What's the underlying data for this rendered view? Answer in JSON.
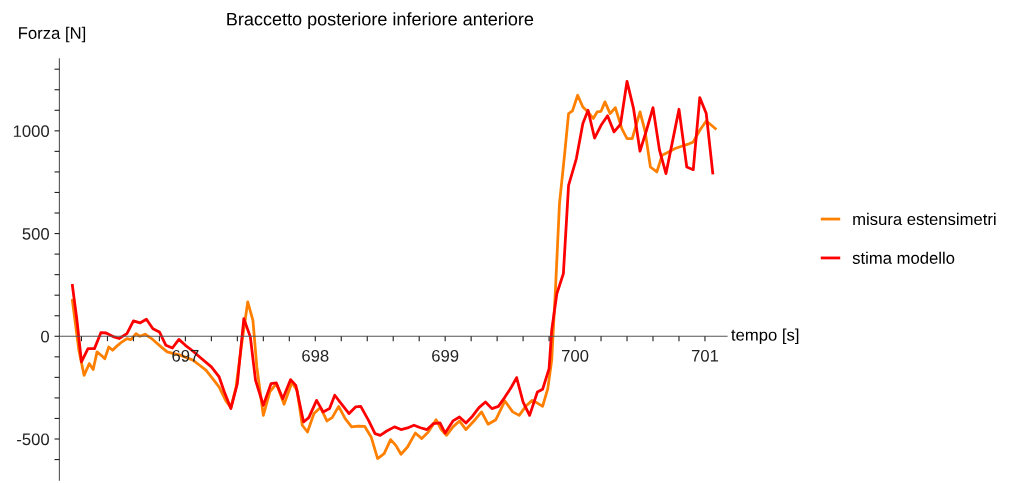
{
  "chart_data": {
    "type": "line",
    "title": "Braccetto posteriore inferiore anteriore",
    "xlabel": "tempo [s]",
    "ylabel": "Forza [N]",
    "xlim": [
      696.03,
      701.17
    ],
    "ylim": [
      -700,
      1350
    ],
    "xticks": [
      {
        "value": 696.2,
        "label": null
      },
      {
        "value": 696.4,
        "label": null
      },
      {
        "value": 696.6,
        "label": null
      },
      {
        "value": 696.8,
        "label": null
      },
      697,
      {
        "value": 697.2,
        "label": null
      },
      {
        "value": 697.4,
        "label": null
      },
      {
        "value": 697.6,
        "label": null
      },
      {
        "value": 697.8,
        "label": null
      },
      698,
      {
        "value": 698.2,
        "label": null
      },
      {
        "value": 698.4,
        "label": null
      },
      {
        "value": 698.6,
        "label": null
      },
      {
        "value": 698.8,
        "label": null
      },
      699,
      {
        "value": 699.2,
        "label": null
      },
      {
        "value": 699.4,
        "label": null
      },
      {
        "value": 699.6,
        "label": null
      },
      {
        "value": 699.8,
        "label": null
      },
      700,
      {
        "value": 700.2,
        "label": null
      },
      {
        "value": 700.4,
        "label": null
      },
      {
        "value": 700.6,
        "label": null
      },
      {
        "value": 700.8,
        "label": null
      },
      701
    ],
    "yticks": [
      {
        "value": -600,
        "label": null
      },
      -500,
      {
        "value": -400,
        "label": null
      },
      {
        "value": -300,
        "label": null
      },
      {
        "value": -200,
        "label": null
      },
      {
        "value": -100,
        "label": null
      },
      0,
      {
        "value": 100,
        "label": null
      },
      {
        "value": 200,
        "label": null
      },
      {
        "value": 300,
        "label": null
      },
      {
        "value": 400,
        "label": null
      },
      500,
      {
        "value": 600,
        "label": null
      },
      {
        "value": 700,
        "label": null
      },
      {
        "value": 800,
        "label": null
      },
      {
        "value": 900,
        "label": null
      },
      1000,
      {
        "value": 1100,
        "label": null
      },
      {
        "value": 1200,
        "label": null
      },
      {
        "value": 1300,
        "label": null
      }
    ],
    "grid": false,
    "legend": "right",
    "marker": "none",
    "line_style": "solid",
    "series": [
      {
        "name": "misura estensimetri",
        "color": "#ff8000",
        "x": [
          696.13,
          696.18,
          696.22,
          696.26,
          696.29,
          696.32,
          696.36,
          696.38,
          696.41,
          696.44,
          696.47,
          696.51,
          696.55,
          696.58,
          696.62,
          696.65,
          696.69,
          696.74,
          696.77,
          696.82,
          696.86,
          696.91,
          696.96,
          697.01,
          697.06,
          697.11,
          697.16,
          697.21,
          697.26,
          697.31,
          697.35,
          697.39,
          697.43,
          697.48,
          697.52,
          697.55,
          697.6,
          697.65,
          697.7,
          697.76,
          697.82,
          697.86,
          697.9,
          697.94,
          697.99,
          698.04,
          698.09,
          698.13,
          698.18,
          698.23,
          698.28,
          698.33,
          698.38,
          698.43,
          698.48,
          698.53,
          698.58,
          698.62,
          698.66,
          698.71,
          698.77,
          698.82,
          698.87,
          698.93,
          698.97,
          699.01,
          699.06,
          699.11,
          699.16,
          699.23,
          699.28,
          699.33,
          699.39,
          699.46,
          699.52,
          699.57,
          699.62,
          699.67,
          699.71,
          699.75,
          699.79,
          699.82,
          699.85,
          699.88,
          699.92,
          699.95,
          699.98,
          700.02,
          700.06,
          700.1,
          700.14,
          700.17,
          700.2,
          700.23,
          700.27,
          700.31,
          700.36,
          700.4,
          700.44,
          700.5,
          700.54,
          700.58,
          700.63,
          700.67,
          700.72,
          700.77,
          700.82,
          700.87,
          700.91,
          700.96,
          701.01,
          701.05,
          701.08
        ],
        "values": [
          175,
          -68,
          -190,
          -133,
          -162,
          -76,
          -97,
          -109,
          -52,
          -68,
          -49,
          -28,
          -11,
          -16,
          13,
          0,
          10,
          -11,
          -28,
          -55,
          -76,
          -84,
          -92,
          -104,
          -117,
          -141,
          -166,
          -206,
          -247,
          -312,
          -347,
          -247,
          -52,
          167,
          78,
          -149,
          -385,
          -271,
          -230,
          -331,
          -225,
          -263,
          -433,
          -466,
          -376,
          -347,
          -412,
          -396,
          -341,
          -401,
          -441,
          -437,
          -438,
          -490,
          -595,
          -571,
          -503,
          -531,
          -574,
          -539,
          -471,
          -498,
          -466,
          -406,
          -454,
          -482,
          -441,
          -412,
          -454,
          -406,
          -368,
          -428,
          -406,
          -315,
          -368,
          -385,
          -341,
          -312,
          -325,
          -341,
          -255,
          -117,
          240,
          646,
          889,
          1084,
          1097,
          1173,
          1116,
          1092,
          1060,
          1092,
          1095,
          1141,
          1084,
          1113,
          1011,
          962,
          962,
          1092,
          995,
          824,
          800,
          881,
          897,
          914,
          925,
          935,
          946,
          1003,
          1048,
          1027,
          1011
        ]
      },
      {
        "name": "stima modello",
        "color": "#ff0000",
        "x": [
          696.13,
          696.165,
          696.2,
          696.25,
          696.3,
          696.35,
          696.39,
          696.45,
          696.49,
          696.55,
          696.6,
          696.65,
          696.7,
          696.75,
          696.8,
          696.85,
          696.9,
          696.95,
          697.0,
          697.05,
          697.11,
          697.2,
          697.26,
          697.3,
          697.35,
          697.4,
          697.45,
          697.5,
          697.54,
          697.6,
          697.66,
          697.7,
          697.75,
          697.81,
          697.85,
          697.91,
          697.95,
          698.01,
          698.06,
          698.11,
          698.15,
          698.21,
          698.26,
          698.31,
          698.35,
          698.41,
          698.46,
          698.5,
          698.55,
          698.61,
          698.66,
          698.71,
          698.76,
          698.81,
          698.86,
          698.91,
          698.96,
          699.0,
          699.06,
          699.11,
          699.16,
          699.21,
          699.26,
          699.31,
          699.36,
          699.41,
          699.46,
          699.51,
          699.55,
          699.6,
          699.65,
          699.71,
          699.75,
          699.8,
          699.82,
          699.86,
          699.91,
          699.95,
          700.01,
          700.06,
          700.1,
          700.15,
          700.2,
          700.25,
          700.3,
          700.35,
          700.4,
          700.45,
          700.5,
          700.55,
          700.6,
          700.65,
          700.7,
          700.76,
          700.8,
          700.86,
          700.91,
          700.96,
          701.01,
          701.06
        ],
        "values": [
          248,
          78,
          -125,
          -60,
          -60,
          18,
          16,
          -3,
          -11,
          13,
          75,
          65,
          83,
          37,
          21,
          -44,
          -57,
          -15,
          -44,
          -68,
          -101,
          -149,
          -198,
          -271,
          -352,
          -230,
          86,
          -3,
          -214,
          -336,
          -230,
          -227,
          -304,
          -211,
          -239,
          -417,
          -396,
          -312,
          -368,
          -352,
          -287,
          -336,
          -376,
          -344,
          -341,
          -409,
          -474,
          -482,
          -461,
          -441,
          -454,
          -446,
          -433,
          -445,
          -454,
          -425,
          -422,
          -471,
          -412,
          -393,
          -422,
          -389,
          -347,
          -320,
          -352,
          -341,
          -296,
          -247,
          -201,
          -320,
          -385,
          -271,
          -258,
          -157,
          29,
          208,
          305,
          735,
          865,
          1036,
          1100,
          965,
          1027,
          1073,
          995,
          1032,
          1241,
          1109,
          901,
          1003,
          1113,
          906,
          792,
          979,
          1105,
          824,
          811,
          1162,
          1084,
          795
        ]
      }
    ]
  }
}
